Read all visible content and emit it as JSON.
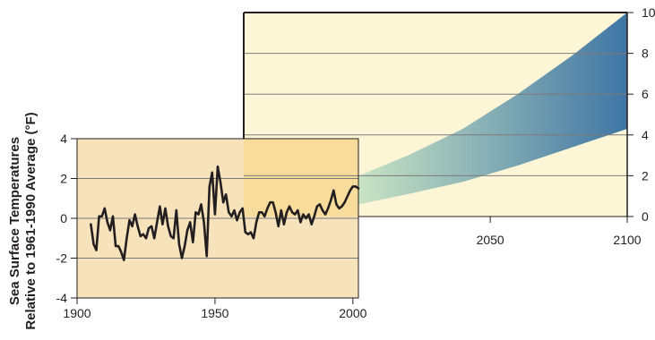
{
  "chart_data": [
    {
      "type": "line",
      "name": "historical",
      "title": "",
      "ylabel_line1": "Sea Surface Temperatures",
      "ylabel_line2": "Relative to 1961-1990 Average (°F)",
      "xlabel": "",
      "xlim": [
        1900,
        2002
      ],
      "ylim": [
        -4,
        4
      ],
      "x_ticks": [
        1900,
        1950,
        2000
      ],
      "y_ticks": [
        -4,
        -2,
        0,
        2,
        4
      ],
      "x_tick_labels": [
        "1900",
        "1950",
        "2000"
      ],
      "y_tick_labels": [
        "-4",
        "-2",
        "0",
        "2",
        "4"
      ],
      "grid": "horizontal",
      "colors": {
        "panel_fill": "#f6e2bb",
        "line": "#231f20",
        "grid": "#7a7a7a"
      },
      "series": [
        {
          "x": [
            1905,
            1906,
            1907,
            1908,
            1909,
            1910,
            1911,
            1912,
            1913,
            1914,
            1915,
            1916,
            1917,
            1918,
            1919,
            1920,
            1921,
            1922,
            1923,
            1924,
            1925,
            1926,
            1927,
            1928,
            1929,
            1930,
            1931,
            1932,
            1933,
            1934,
            1935,
            1936,
            1937,
            1938,
            1939,
            1940,
            1941,
            1942,
            1943,
            1944,
            1945,
            1946,
            1947,
            1948,
            1949,
            1950,
            1951,
            1952,
            1953,
            1954,
            1955,
            1956,
            1957,
            1958,
            1959,
            1960,
            1961,
            1962,
            1963,
            1964,
            1965,
            1966,
            1967,
            1968,
            1969,
            1970,
            1971,
            1972,
            1973,
            1974,
            1975,
            1976,
            1977,
            1978,
            1979,
            1980,
            1981,
            1982,
            1983,
            1984,
            1985,
            1986,
            1987,
            1988,
            1989,
            1990,
            1991,
            1992,
            1993,
            1994,
            1995,
            1996,
            1997,
            1998,
            1999,
            2000,
            2001,
            2002
          ],
          "values": [
            -0.3,
            -1.3,
            -1.6,
            0.1,
            0.1,
            0.5,
            -0.2,
            -0.6,
            0.1,
            -1.4,
            -1.4,
            -1.7,
            -2.1,
            -1.0,
            -0.1,
            -0.4,
            0.2,
            -0.4,
            -0.9,
            -0.8,
            -1.0,
            -0.5,
            -0.4,
            -1.0,
            -0.2,
            0.6,
            -0.3,
            0.5,
            -0.4,
            -0.9,
            -1.0,
            0.4,
            -1.3,
            -2.0,
            -1.4,
            -0.6,
            -0.2,
            -1.2,
            0.3,
            0.2,
            0.7,
            -0.2,
            -1.9,
            1.6,
            2.3,
            0.2,
            2.6,
            1.8,
            0.8,
            1.2,
            0.3,
            0.1,
            0.4,
            -0.1,
            0.3,
            0.5,
            -0.7,
            -0.8,
            -0.7,
            -1.0,
            -0.2,
            0.3,
            0.3,
            0.1,
            0.5,
            0.8,
            0.8,
            0.3,
            -0.4,
            0.4,
            -0.3,
            0.3,
            0.6,
            0.3,
            0.2,
            0.4,
            -0.2,
            0.2,
            0.0,
            0.2,
            -0.3,
            0.1,
            0.6,
            0.7,
            0.4,
            0.2,
            0.5,
            0.9,
            1.4,
            0.7,
            0.5,
            0.6,
            0.8,
            1.1,
            1.4,
            1.6,
            1.6,
            1.5
          ]
        }
      ]
    },
    {
      "type": "area",
      "name": "projection",
      "title": "",
      "xlim": [
        1960,
        2100
      ],
      "ylim": [
        0,
        10
      ],
      "x_ticks": [
        2050,
        2100
      ],
      "y_ticks": [
        0,
        2,
        4,
        6,
        8,
        10
      ],
      "x_tick_labels": [
        "2050",
        "2100"
      ],
      "y_tick_labels": [
        "0",
        "2",
        "4",
        "6",
        "8",
        "10"
      ],
      "grid": "horizontal",
      "colors": {
        "panel_fill": "#fdf6d6",
        "band_start": "#c9e4c4",
        "band_end": "#3f75a4",
        "grid": "#7a7a7a"
      },
      "band": {
        "x": [
          2002,
          2020,
          2040,
          2060,
          2080,
          2100
        ],
        "low": [
          0.6,
          1.1,
          1.7,
          2.5,
          3.4,
          4.3
        ],
        "high": [
          2.0,
          3.0,
          4.3,
          6.0,
          7.9,
          10.0
        ]
      }
    }
  ]
}
